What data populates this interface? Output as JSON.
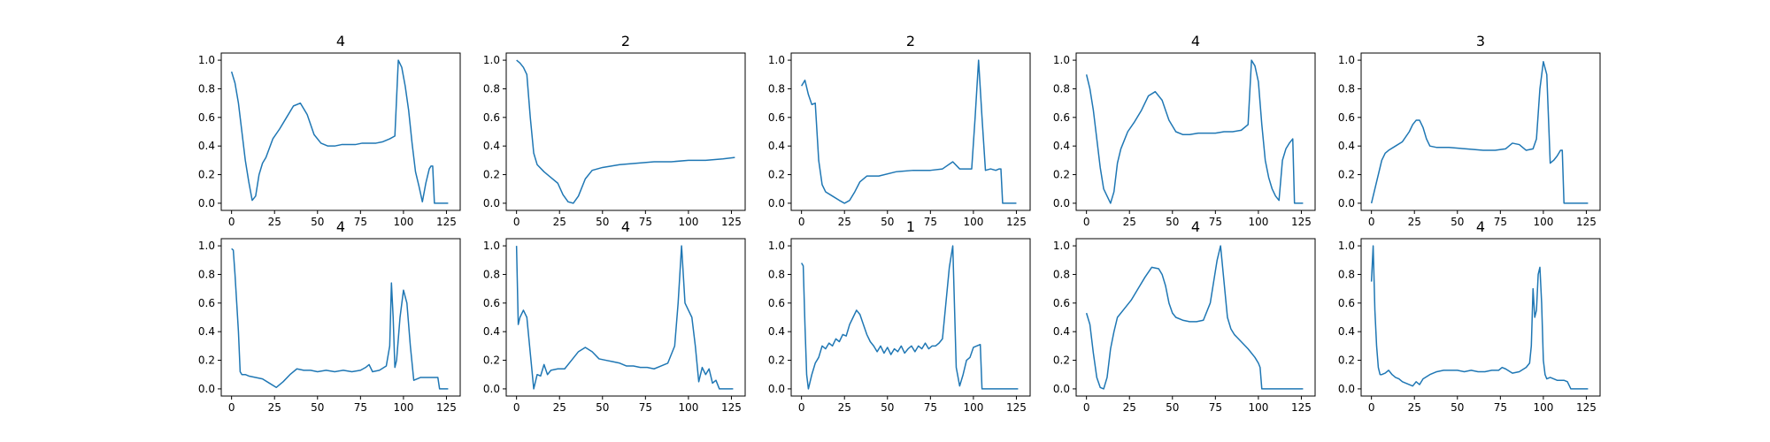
{
  "chart_data": [
    {
      "type": "line",
      "title": "4",
      "xlim": [
        -6,
        133
      ],
      "ylim": [
        -0.05,
        1.05
      ],
      "xticks": [
        0,
        25,
        50,
        75,
        100,
        125
      ],
      "yticks": [
        0.0,
        0.2,
        0.4,
        0.6,
        0.8,
        1.0
      ],
      "x": [
        0,
        2,
        4,
        6,
        8,
        10,
        12,
        14,
        16,
        18,
        20,
        24,
        28,
        32,
        36,
        40,
        44,
        48,
        52,
        56,
        60,
        64,
        68,
        72,
        76,
        80,
        84,
        88,
        92,
        95,
        97,
        99,
        101,
        103,
        105,
        107,
        109,
        111,
        113,
        115,
        116,
        117,
        118,
        120,
        122,
        124,
        126
      ],
      "y": [
        0.92,
        0.84,
        0.7,
        0.5,
        0.3,
        0.15,
        0.02,
        0.05,
        0.2,
        0.28,
        0.32,
        0.45,
        0.52,
        0.6,
        0.68,
        0.7,
        0.62,
        0.48,
        0.42,
        0.4,
        0.4,
        0.41,
        0.41,
        0.41,
        0.42,
        0.42,
        0.42,
        0.43,
        0.45,
        0.47,
        1.0,
        0.95,
        0.82,
        0.65,
        0.42,
        0.22,
        0.12,
        0.01,
        0.14,
        0.24,
        0.26,
        0.26,
        0.0,
        0.0,
        0.0,
        0.0,
        0.0
      ],
      "color": "#1f77b4"
    },
    {
      "type": "line",
      "title": "2",
      "xlim": [
        -6,
        133
      ],
      "ylim": [
        -0.05,
        1.05
      ],
      "xticks": [
        0,
        25,
        50,
        75,
        100,
        125
      ],
      "yticks": [
        0.0,
        0.2,
        0.4,
        0.6,
        0.8,
        1.0
      ],
      "x": [
        0,
        2,
        4,
        6,
        8,
        10,
        12,
        16,
        20,
        24,
        27,
        30,
        33,
        36,
        40,
        44,
        50,
        60,
        70,
        80,
        90,
        100,
        110,
        120,
        127
      ],
      "y": [
        1.0,
        0.98,
        0.95,
        0.9,
        0.6,
        0.35,
        0.27,
        0.22,
        0.18,
        0.14,
        0.06,
        0.01,
        0.0,
        0.05,
        0.17,
        0.23,
        0.25,
        0.27,
        0.28,
        0.29,
        0.29,
        0.3,
        0.3,
        0.31,
        0.32
      ],
      "color": "#1f77b4"
    },
    {
      "type": "line",
      "title": "2",
      "xlim": [
        -6,
        133
      ],
      "ylim": [
        -0.05,
        1.05
      ],
      "xticks": [
        0,
        25,
        50,
        75,
        100,
        125
      ],
      "yticks": [
        0.0,
        0.2,
        0.4,
        0.6,
        0.8,
        1.0
      ],
      "x": [
        0,
        2,
        4,
        6,
        8,
        10,
        12,
        14,
        18,
        22,
        25,
        28,
        31,
        34,
        38,
        45,
        55,
        65,
        75,
        82,
        88,
        92,
        96,
        99,
        101,
        103,
        105,
        107,
        110,
        113,
        115,
        116,
        117,
        118,
        120,
        125
      ],
      "y": [
        0.82,
        0.86,
        0.76,
        0.69,
        0.7,
        0.3,
        0.13,
        0.08,
        0.05,
        0.02,
        0.0,
        0.02,
        0.08,
        0.15,
        0.19,
        0.19,
        0.22,
        0.23,
        0.23,
        0.24,
        0.29,
        0.24,
        0.24,
        0.24,
        0.6,
        1.0,
        0.6,
        0.23,
        0.24,
        0.23,
        0.24,
        0.24,
        0.0,
        0.0,
        0.0,
        0.0
      ],
      "color": "#1f77b4"
    },
    {
      "type": "line",
      "title": "4",
      "xlim": [
        -6,
        133
      ],
      "ylim": [
        -0.05,
        1.05
      ],
      "xticks": [
        0,
        25,
        50,
        75,
        100,
        125
      ],
      "yticks": [
        0.0,
        0.2,
        0.4,
        0.6,
        0.8,
        1.0
      ],
      "x": [
        0,
        2,
        4,
        6,
        8,
        10,
        12,
        14,
        16,
        18,
        20,
        24,
        28,
        32,
        36,
        40,
        44,
        48,
        52,
        56,
        60,
        65,
        70,
        75,
        80,
        85,
        90,
        94,
        96,
        98,
        100,
        102,
        104,
        106,
        108,
        110,
        112,
        114,
        116,
        118,
        120,
        121,
        122,
        124,
        126
      ],
      "y": [
        0.9,
        0.8,
        0.65,
        0.45,
        0.25,
        0.1,
        0.05,
        0.0,
        0.08,
        0.28,
        0.38,
        0.5,
        0.57,
        0.65,
        0.75,
        0.78,
        0.72,
        0.58,
        0.5,
        0.48,
        0.48,
        0.49,
        0.49,
        0.49,
        0.5,
        0.5,
        0.51,
        0.55,
        1.0,
        0.96,
        0.85,
        0.55,
        0.3,
        0.18,
        0.1,
        0.05,
        0.02,
        0.3,
        0.38,
        0.42,
        0.45,
        0.0,
        0.0,
        0.0,
        0.0
      ],
      "color": "#1f77b4"
    },
    {
      "type": "line",
      "title": "3",
      "xlim": [
        -6,
        133
      ],
      "ylim": [
        -0.05,
        1.05
      ],
      "xticks": [
        0,
        25,
        50,
        75,
        100,
        125
      ],
      "yticks": [
        0.0,
        0.2,
        0.4,
        0.6,
        0.8,
        1.0
      ],
      "x": [
        0,
        2,
        4,
        6,
        8,
        10,
        14,
        18,
        22,
        24,
        26,
        28,
        30,
        32,
        34,
        38,
        45,
        55,
        65,
        72,
        78,
        82,
        86,
        90,
        94,
        96,
        98,
        100,
        102,
        104,
        106,
        108,
        110,
        111,
        112,
        114,
        120,
        126
      ],
      "y": [
        0.0,
        0.1,
        0.2,
        0.3,
        0.35,
        0.37,
        0.4,
        0.43,
        0.5,
        0.55,
        0.58,
        0.58,
        0.53,
        0.45,
        0.4,
        0.39,
        0.39,
        0.38,
        0.37,
        0.37,
        0.38,
        0.42,
        0.41,
        0.37,
        0.38,
        0.45,
        0.8,
        0.99,
        0.9,
        0.28,
        0.3,
        0.33,
        0.37,
        0.37,
        0.0,
        0.0,
        0.0,
        0.0
      ],
      "color": "#1f77b4"
    },
    {
      "type": "line",
      "title": "4",
      "xlim": [
        -6,
        133
      ],
      "ylim": [
        -0.05,
        1.05
      ],
      "xticks": [
        0,
        25,
        50,
        75,
        100,
        125
      ],
      "yticks": [
        0.0,
        0.2,
        0.4,
        0.6,
        0.8,
        1.0
      ],
      "x": [
        0,
        1,
        2,
        3,
        4,
        5,
        6,
        8,
        10,
        14,
        18,
        22,
        26,
        30,
        34,
        38,
        42,
        46,
        50,
        55,
        60,
        65,
        70,
        75,
        78,
        80,
        82,
        86,
        90,
        92,
        93,
        94,
        95,
        96,
        98,
        100,
        102,
        104,
        106,
        108,
        110,
        115,
        120,
        121,
        122,
        126
      ],
      "y": [
        0.98,
        0.97,
        0.8,
        0.6,
        0.4,
        0.12,
        0.1,
        0.1,
        0.09,
        0.08,
        0.07,
        0.04,
        0.01,
        0.05,
        0.1,
        0.14,
        0.13,
        0.13,
        0.12,
        0.13,
        0.12,
        0.13,
        0.12,
        0.13,
        0.15,
        0.17,
        0.12,
        0.13,
        0.16,
        0.3,
        0.74,
        0.5,
        0.15,
        0.2,
        0.5,
        0.69,
        0.6,
        0.3,
        0.06,
        0.07,
        0.08,
        0.08,
        0.08,
        0.0,
        0.0,
        0.0
      ],
      "color": "#1f77b4"
    },
    {
      "type": "line",
      "title": "4",
      "xlim": [
        -6,
        133
      ],
      "ylim": [
        -0.05,
        1.05
      ],
      "xticks": [
        0,
        25,
        50,
        75,
        100,
        125
      ],
      "yticks": [
        0.0,
        0.2,
        0.4,
        0.6,
        0.8,
        1.0
      ],
      "x": [
        0,
        1,
        2,
        4,
        6,
        8,
        10,
        12,
        14,
        16,
        18,
        20,
        24,
        28,
        32,
        36,
        40,
        44,
        48,
        52,
        56,
        60,
        64,
        68,
        72,
        76,
        80,
        84,
        88,
        92,
        94,
        96,
        98,
        100,
        102,
        104,
        106,
        108,
        110,
        112,
        114,
        116,
        118,
        119,
        120,
        126
      ],
      "y": [
        1.0,
        0.45,
        0.5,
        0.55,
        0.5,
        0.25,
        0.0,
        0.1,
        0.09,
        0.17,
        0.1,
        0.13,
        0.14,
        0.14,
        0.2,
        0.26,
        0.29,
        0.26,
        0.21,
        0.2,
        0.19,
        0.18,
        0.16,
        0.16,
        0.15,
        0.15,
        0.14,
        0.16,
        0.18,
        0.3,
        0.6,
        1.0,
        0.6,
        0.55,
        0.5,
        0.3,
        0.05,
        0.15,
        0.1,
        0.14,
        0.04,
        0.06,
        0.0,
        0.0,
        0.0,
        0.0
      ],
      "color": "#1f77b4"
    },
    {
      "type": "line",
      "title": "1",
      "xlim": [
        -6,
        133
      ],
      "ylim": [
        -0.05,
        1.05
      ],
      "xticks": [
        0,
        25,
        50,
        75,
        100,
        125
      ],
      "yticks": [
        0.0,
        0.2,
        0.4,
        0.6,
        0.8,
        1.0
      ],
      "x": [
        0,
        1,
        2,
        3,
        4,
        6,
        8,
        10,
        12,
        14,
        16,
        18,
        20,
        22,
        24,
        26,
        28,
        30,
        32,
        34,
        36,
        38,
        40,
        42,
        44,
        46,
        48,
        50,
        52,
        54,
        56,
        58,
        60,
        62,
        64,
        66,
        68,
        70,
        72,
        74,
        76,
        78,
        80,
        82,
        84,
        86,
        88,
        90,
        92,
        94,
        96,
        98,
        100,
        102,
        104,
        105,
        106,
        110,
        115,
        120,
        126
      ],
      "y": [
        0.88,
        0.86,
        0.45,
        0.1,
        0.0,
        0.1,
        0.18,
        0.22,
        0.3,
        0.28,
        0.32,
        0.3,
        0.35,
        0.33,
        0.38,
        0.37,
        0.45,
        0.5,
        0.55,
        0.52,
        0.45,
        0.38,
        0.33,
        0.3,
        0.26,
        0.3,
        0.25,
        0.29,
        0.24,
        0.28,
        0.26,
        0.3,
        0.25,
        0.28,
        0.3,
        0.26,
        0.3,
        0.28,
        0.32,
        0.28,
        0.3,
        0.3,
        0.32,
        0.35,
        0.6,
        0.85,
        1.0,
        0.15,
        0.02,
        0.1,
        0.2,
        0.22,
        0.29,
        0.3,
        0.31,
        0.0,
        0.0,
        0.0,
        0.0,
        0.0,
        0.0
      ],
      "color": "#1f77b4"
    },
    {
      "type": "line",
      "title": "4",
      "xlim": [
        -6,
        133
      ],
      "ylim": [
        -0.05,
        1.05
      ],
      "xticks": [
        0,
        25,
        50,
        75,
        100,
        125
      ],
      "yticks": [
        0.0,
        0.2,
        0.4,
        0.6,
        0.8,
        1.0
      ],
      "x": [
        0,
        2,
        4,
        6,
        8,
        10,
        12,
        14,
        16,
        18,
        22,
        26,
        30,
        34,
        38,
        42,
        44,
        46,
        48,
        50,
        52,
        56,
        60,
        64,
        68,
        72,
        74,
        76,
        78,
        80,
        82,
        84,
        86,
        90,
        94,
        98,
        100,
        101,
        102,
        106,
        110,
        115,
        120,
        126
      ],
      "y": [
        0.53,
        0.45,
        0.25,
        0.08,
        0.01,
        0.0,
        0.08,
        0.28,
        0.4,
        0.5,
        0.56,
        0.62,
        0.7,
        0.78,
        0.85,
        0.84,
        0.8,
        0.72,
        0.6,
        0.53,
        0.5,
        0.48,
        0.47,
        0.47,
        0.48,
        0.6,
        0.75,
        0.9,
        1.0,
        0.75,
        0.5,
        0.42,
        0.38,
        0.33,
        0.28,
        0.22,
        0.18,
        0.15,
        0.0,
        0.0,
        0.0,
        0.0,
        0.0,
        0.0
      ],
      "color": "#1f77b4"
    },
    {
      "type": "line",
      "title": "4",
      "xlim": [
        -6,
        133
      ],
      "ylim": [
        -0.05,
        1.05
      ],
      "xticks": [
        0,
        25,
        50,
        75,
        100,
        125
      ],
      "yticks": [
        0.0,
        0.2,
        0.4,
        0.6,
        0.8,
        1.0
      ],
      "x": [
        0,
        1,
        2,
        3,
        4,
        5,
        6,
        8,
        10,
        12,
        14,
        16,
        18,
        20,
        22,
        24,
        26,
        28,
        30,
        34,
        38,
        42,
        46,
        50,
        54,
        58,
        62,
        66,
        70,
        74,
        76,
        78,
        82,
        86,
        90,
        92,
        93,
        94,
        95,
        96,
        97,
        98,
        99,
        100,
        101,
        102,
        104,
        106,
        108,
        110,
        112,
        114,
        116,
        117,
        118,
        126
      ],
      "y": [
        0.75,
        1.0,
        0.55,
        0.3,
        0.15,
        0.1,
        0.1,
        0.11,
        0.13,
        0.1,
        0.08,
        0.07,
        0.05,
        0.04,
        0.03,
        0.02,
        0.05,
        0.03,
        0.07,
        0.1,
        0.12,
        0.13,
        0.13,
        0.13,
        0.12,
        0.13,
        0.12,
        0.12,
        0.13,
        0.13,
        0.15,
        0.14,
        0.11,
        0.12,
        0.15,
        0.18,
        0.3,
        0.7,
        0.5,
        0.55,
        0.8,
        0.85,
        0.6,
        0.2,
        0.1,
        0.07,
        0.08,
        0.07,
        0.06,
        0.06,
        0.06,
        0.05,
        0.0,
        0.0,
        0.0,
        0.0
      ],
      "color": "#1f77b4"
    }
  ]
}
